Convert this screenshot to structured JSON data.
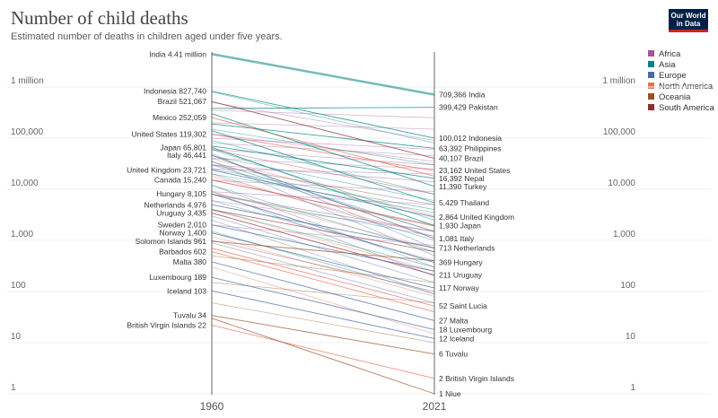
{
  "header": {
    "title": "Number of child deaths",
    "subtitle": "Estimated number of deaths in children aged under five years.",
    "logo_line1": "Our World",
    "logo_line2": "in Data"
  },
  "legend": [
    {
      "label": "Africa",
      "color": "#a2559c"
    },
    {
      "label": "Asia",
      "color": "#00847e"
    },
    {
      "label": "Europe",
      "color": "#4c6a9c"
    },
    {
      "label": "North America",
      "color": "#e56e5a"
    },
    {
      "label": "Oceania",
      "color": "#9a5129"
    },
    {
      "label": "South America",
      "color": "#883039"
    }
  ],
  "chart_data": {
    "type": "line",
    "subtype": "slope",
    "title": "Number of child deaths",
    "subtitle": "Estimated number of deaths in children aged under five years.",
    "x": [
      "1960",
      "2021"
    ],
    "y_scale": "log",
    "ylim": [
      1,
      10000000
    ],
    "y_ticks": [
      {
        "value": 1000000,
        "label": "1 million"
      },
      {
        "value": 100000,
        "label": "100,000"
      },
      {
        "value": 10000,
        "label": "10,000"
      },
      {
        "value": 1000,
        "label": "1,000"
      },
      {
        "value": 100,
        "label": "100"
      },
      {
        "value": 10,
        "label": "10"
      },
      {
        "value": 1,
        "label": "1"
      }
    ],
    "labeled_series": [
      {
        "name": "India",
        "region": "Asia",
        "values": [
          4410000,
          709366
        ],
        "start_label": "India 4.41 million",
        "end_label": "709,366 India"
      },
      {
        "name": "Pakistan",
        "region": "Asia",
        "values": [
          380000,
          399429
        ],
        "end_label": "399,429 Pakistan"
      },
      {
        "name": "Indonesia",
        "region": "Asia",
        "values": [
          827740,
          100012
        ],
        "start_label": "Indonesia 827,740",
        "end_label": "100,012 Indonesia"
      },
      {
        "name": "Philippines",
        "region": "Asia",
        "values": [
          190000,
          63392
        ],
        "end_label": "63,392 Philippines"
      },
      {
        "name": "Brazil",
        "region": "South America",
        "values": [
          521067,
          40107
        ],
        "start_label": "Brazil 521,067",
        "end_label": "40,107 Brazil"
      },
      {
        "name": "Mexico",
        "region": "North America",
        "values": [
          252059,
          18000
        ],
        "start_label": "Mexico 252,059"
      },
      {
        "name": "United States",
        "region": "North America",
        "values": [
          119302,
          23162
        ],
        "start_label": "United States 119,302",
        "end_label": "23,162 United States"
      },
      {
        "name": "Nepal",
        "region": "Asia",
        "values": [
          70000,
          16392
        ],
        "end_label": "16,392 Nepal"
      },
      {
        "name": "Turkey",
        "region": "Asia",
        "values": [
          300000,
          11390
        ],
        "end_label": "11,390 Turkey"
      },
      {
        "name": "Japan",
        "region": "Asia",
        "values": [
          65801,
          1930
        ],
        "start_label": "Japan 65,801",
        "end_label": "1,930 Japan"
      },
      {
        "name": "Italy",
        "region": "Europe",
        "values": [
          46441,
          1081
        ],
        "start_label": "Italy 46,441",
        "end_label": "1,081 Italy"
      },
      {
        "name": "Thailand",
        "region": "Asia",
        "values": [
          140000,
          5429
        ],
        "end_label": "5,429 Thailand"
      },
      {
        "name": "United Kingdom",
        "region": "Europe",
        "values": [
          23721,
          2864
        ],
        "start_label": "United Kingdom 23,721",
        "end_label": "2,864 United Kingdom"
      },
      {
        "name": "Canada",
        "region": "North America",
        "values": [
          15240,
          1900
        ],
        "start_label": "Canada 15,240"
      },
      {
        "name": "Netherlands",
        "region": "Europe",
        "values": [
          4976,
          713
        ],
        "start_label": "Netherlands 4,976",
        "end_label": "713 Netherlands"
      },
      {
        "name": "Hungary",
        "region": "Europe",
        "values": [
          8105,
          369
        ],
        "start_label": "Hungary 8,105",
        "end_label": "369 Hungary"
      },
      {
        "name": "Uruguay",
        "region": "South America",
        "values": [
          3435,
          211
        ],
        "start_label": "Uruguay 3,435",
        "end_label": "211 Uruguay"
      },
      {
        "name": "Sweden",
        "region": "Europe",
        "values": [
          2010,
          250
        ],
        "start_label": "Sweden 2,010"
      },
      {
        "name": "Norway",
        "region": "Europe",
        "values": [
          1400,
          117
        ],
        "start_label": "Norway 1,400",
        "end_label": "117 Norway"
      },
      {
        "name": "Solomon Islands",
        "region": "Oceania",
        "values": [
          961,
          400
        ],
        "start_label": "Solomon Islands 961"
      },
      {
        "name": "Barbados",
        "region": "North America",
        "values": [
          602,
          40
        ],
        "start_label": "Barbados 602"
      },
      {
        "name": "Saint Lucia",
        "region": "North America",
        "values": [
          700,
          52
        ],
        "end_label": "52 Saint Lucia"
      },
      {
        "name": "Malta",
        "region": "Europe",
        "values": [
          380,
          27
        ],
        "start_label": "Malta 380",
        "end_label": "27 Malta"
      },
      {
        "name": "Luxembourg",
        "region": "Europe",
        "values": [
          189,
          18
        ],
        "start_label": "Luxembourg 189",
        "end_label": "18 Luxembourg"
      },
      {
        "name": "Iceland",
        "region": "Europe",
        "values": [
          103,
          12
        ],
        "start_label": "Iceland 103",
        "end_label": "12 Iceland"
      },
      {
        "name": "Tuvalu",
        "region": "Oceania",
        "values": [
          34,
          6
        ],
        "start_label": "Tuvalu 34",
        "end_label": "6 Tuvalu"
      },
      {
        "name": "British Virgin Islands",
        "region": "North America",
        "values": [
          22,
          2
        ],
        "start_label": "British Virgin Islands 22",
        "end_label": "2 British Virgin Islands"
      },
      {
        "name": "Niue",
        "region": "Oceania",
        "values": [
          30,
          1
        ],
        "end_label": "1 Niue"
      }
    ],
    "background_series": [
      {
        "region": "Africa",
        "values": [
          100000,
          60000
        ]
      },
      {
        "region": "Africa",
        "values": [
          120000,
          35000
        ]
      },
      {
        "region": "Africa",
        "values": [
          200000,
          150000
        ]
      },
      {
        "region": "Africa",
        "values": [
          60000,
          30000
        ]
      },
      {
        "region": "Africa",
        "values": [
          40000,
          25000
        ]
      },
      {
        "region": "Africa",
        "values": [
          30000,
          14000
        ]
      },
      {
        "region": "Africa",
        "values": [
          25000,
          20000
        ]
      },
      {
        "region": "Africa",
        "values": [
          15000,
          9000
        ]
      },
      {
        "region": "Africa",
        "values": [
          9000,
          5000
        ]
      },
      {
        "region": "Africa",
        "values": [
          500000,
          90000
        ]
      },
      {
        "region": "Africa",
        "values": [
          350000,
          250000
        ]
      },
      {
        "region": "Africa",
        "values": [
          80000,
          45000
        ]
      },
      {
        "region": "Africa",
        "values": [
          2000,
          800
        ]
      },
      {
        "region": "Africa",
        "values": [
          6000,
          1500
        ]
      },
      {
        "region": "Asia",
        "values": [
          800000,
          80000
        ]
      },
      {
        "region": "Asia",
        "values": [
          90000,
          8000
        ]
      },
      {
        "region": "Asia",
        "values": [
          150000,
          30000
        ]
      },
      {
        "region": "Asia",
        "values": [
          60000,
          2500
        ]
      },
      {
        "region": "Asia",
        "values": [
          45000,
          6000
        ]
      },
      {
        "region": "Asia",
        "values": [
          25000,
          4000
        ]
      },
      {
        "region": "Asia",
        "values": [
          35000,
          1500
        ]
      },
      {
        "region": "Asia",
        "values": [
          12000,
          600
        ]
      },
      {
        "region": "Asia",
        "values": [
          8000,
          1200
        ]
      },
      {
        "region": "Asia",
        "values": [
          4000,
          300
        ]
      },
      {
        "region": "Asia",
        "values": [
          1500,
          90
        ]
      },
      {
        "region": "Asia",
        "values": [
          20000,
          3500
        ]
      },
      {
        "region": "Europe",
        "values": [
          50000,
          700
        ]
      },
      {
        "region": "Europe",
        "values": [
          30000,
          1500
        ]
      },
      {
        "region": "Europe",
        "values": [
          20000,
          1000
        ]
      },
      {
        "region": "Europe",
        "values": [
          12000,
          300
        ]
      },
      {
        "region": "Europe",
        "values": [
          9000,
          200
        ]
      },
      {
        "region": "Europe",
        "values": [
          6000,
          400
        ]
      },
      {
        "region": "Europe",
        "values": [
          3000,
          150
        ]
      },
      {
        "region": "Europe",
        "values": [
          2500,
          90
        ]
      },
      {
        "region": "Europe",
        "values": [
          900,
          60
        ]
      },
      {
        "region": "Europe",
        "values": [
          35000,
          500
        ]
      },
      {
        "region": "North America",
        "values": [
          40000,
          3000
        ]
      },
      {
        "region": "North America",
        "values": [
          18000,
          1200
        ]
      },
      {
        "region": "North America",
        "values": [
          9000,
          700
        ]
      },
      {
        "region": "North America",
        "values": [
          4000,
          250
        ]
      },
      {
        "region": "North America",
        "values": [
          1200,
          80
        ]
      },
      {
        "region": "North America",
        "values": [
          300,
          15
        ]
      },
      {
        "region": "Oceania",
        "values": [
          4000,
          600
        ]
      },
      {
        "region": "Oceania",
        "values": [
          500,
          150
        ]
      },
      {
        "region": "Oceania",
        "values": [
          150,
          60
        ]
      },
      {
        "region": "Oceania",
        "values": [
          60,
          10
        ]
      },
      {
        "region": "South America",
        "values": [
          60000,
          8000
        ]
      },
      {
        "region": "South America",
        "values": [
          30000,
          5000
        ]
      },
      {
        "region": "South America",
        "values": [
          15000,
          2000
        ]
      },
      {
        "region": "South America",
        "values": [
          8000,
          1500
        ]
      },
      {
        "region": "South America",
        "values": [
          4000,
          600
        ]
      },
      {
        "region": "South America",
        "values": [
          1000,
          100
        ]
      }
    ]
  }
}
